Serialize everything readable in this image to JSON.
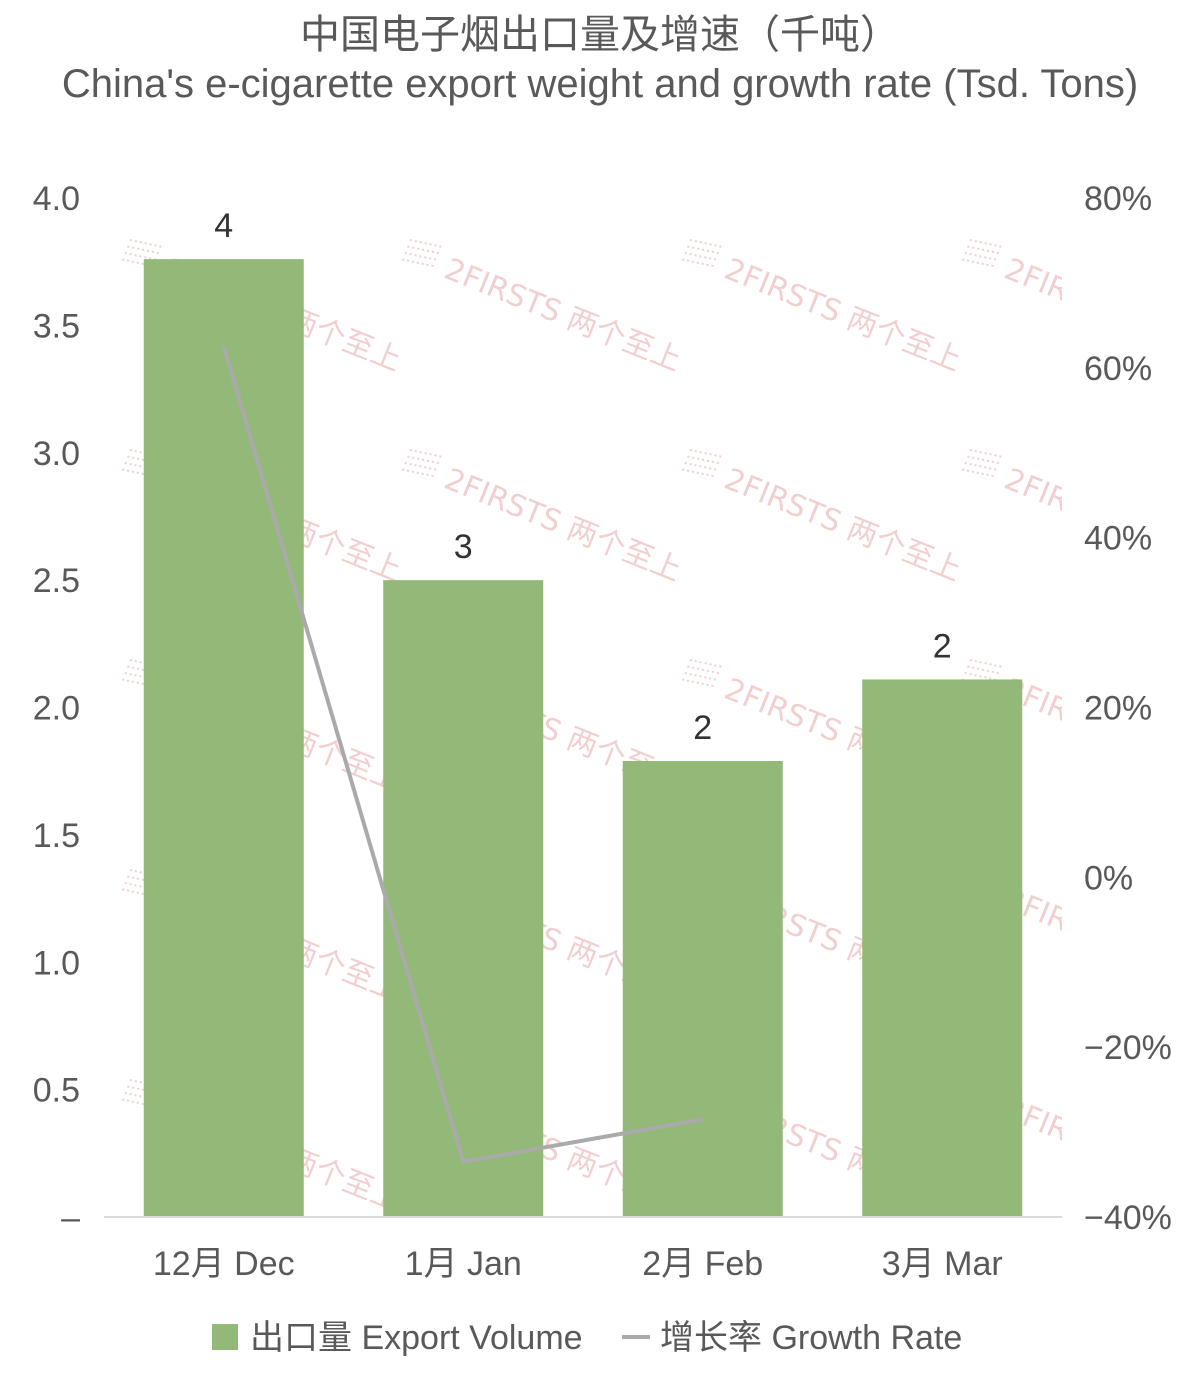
{
  "chart_data": {
    "type": "bar",
    "title_cn": "中国电子烟出口量及增速（千吨）",
    "title_en": "China's e-cigarette export weight and growth rate (Tsd. Tons)",
    "categories": [
      "12月 Dec",
      "1月 Jan",
      "2月 Feb",
      "3月 Mar"
    ],
    "series": [
      {
        "name": "出口量 Export Volume",
        "type": "bar",
        "axis": "left",
        "color": "#93b978",
        "values": [
          3.76,
          2.5,
          1.79,
          2.11
        ],
        "data_labels": [
          "4",
          "3",
          "2",
          "2"
        ]
      },
      {
        "name": "增长率 Growth Rate",
        "type": "line",
        "axis": "right",
        "color": "#aaaaaa",
        "values": [
          62.5,
          -33.5,
          -28.5,
          null
        ]
      }
    ],
    "y_left": {
      "min": 0,
      "max": 4.0,
      "ticks": [
        "–",
        "0.5",
        "1.0",
        "1.5",
        "2.0",
        "2.5",
        "3.0",
        "3.5",
        "4.0"
      ]
    },
    "y_right": {
      "min": -40,
      "max": 80,
      "ticks": [
        "−40%",
        "−20%",
        "0%",
        "20%",
        "40%",
        "60%",
        "80%"
      ]
    },
    "legend": {
      "position": "bottom"
    },
    "grid": false,
    "watermark": {
      "text": "2FIRSTS 两个至上",
      "color": "#e8a9a9"
    }
  }
}
